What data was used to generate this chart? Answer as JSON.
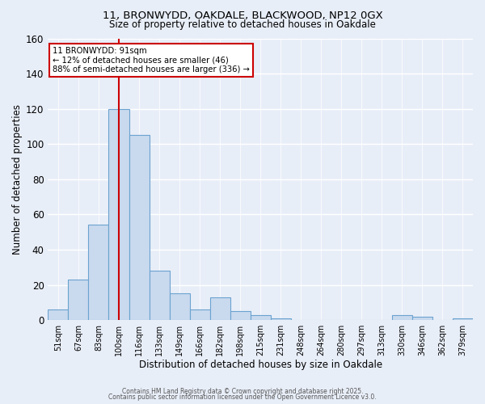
{
  "title_line1": "11, BRONWYDD, OAKDALE, BLACKWOOD, NP12 0GX",
  "title_line2": "Size of property relative to detached houses in Oakdale",
  "xlabel": "Distribution of detached houses by size in Oakdale",
  "ylabel": "Number of detached properties",
  "categories": [
    "51sqm",
    "67sqm",
    "83sqm",
    "100sqm",
    "116sqm",
    "133sqm",
    "149sqm",
    "166sqm",
    "182sqm",
    "198sqm",
    "215sqm",
    "231sqm",
    "248sqm",
    "264sqm",
    "280sqm",
    "297sqm",
    "313sqm",
    "330sqm",
    "346sqm",
    "362sqm",
    "379sqm"
  ],
  "values": [
    6,
    23,
    54,
    120,
    105,
    28,
    15,
    6,
    13,
    5,
    3,
    1,
    0,
    0,
    0,
    0,
    0,
    3,
    2,
    0,
    1
  ],
  "bar_color": "#c9d9ee",
  "bar_edge_color": "#6ba3d0",
  "property_label": "11 BRONWYDD: 91sqm",
  "pct_smaller": 12,
  "n_smaller": 46,
  "pct_larger_semi": 88,
  "n_larger_semi": 336,
  "red_line_x": 3.0,
  "ylim": [
    0,
    160
  ],
  "yticks": [
    0,
    20,
    40,
    60,
    80,
    100,
    120,
    140,
    160
  ],
  "footer_line1": "Contains HM Land Registry data © Crown copyright and database right 2025.",
  "footer_line2": "Contains public sector information licensed under the Open Government Licence v3.0.",
  "background_color": "#e8eef8"
}
